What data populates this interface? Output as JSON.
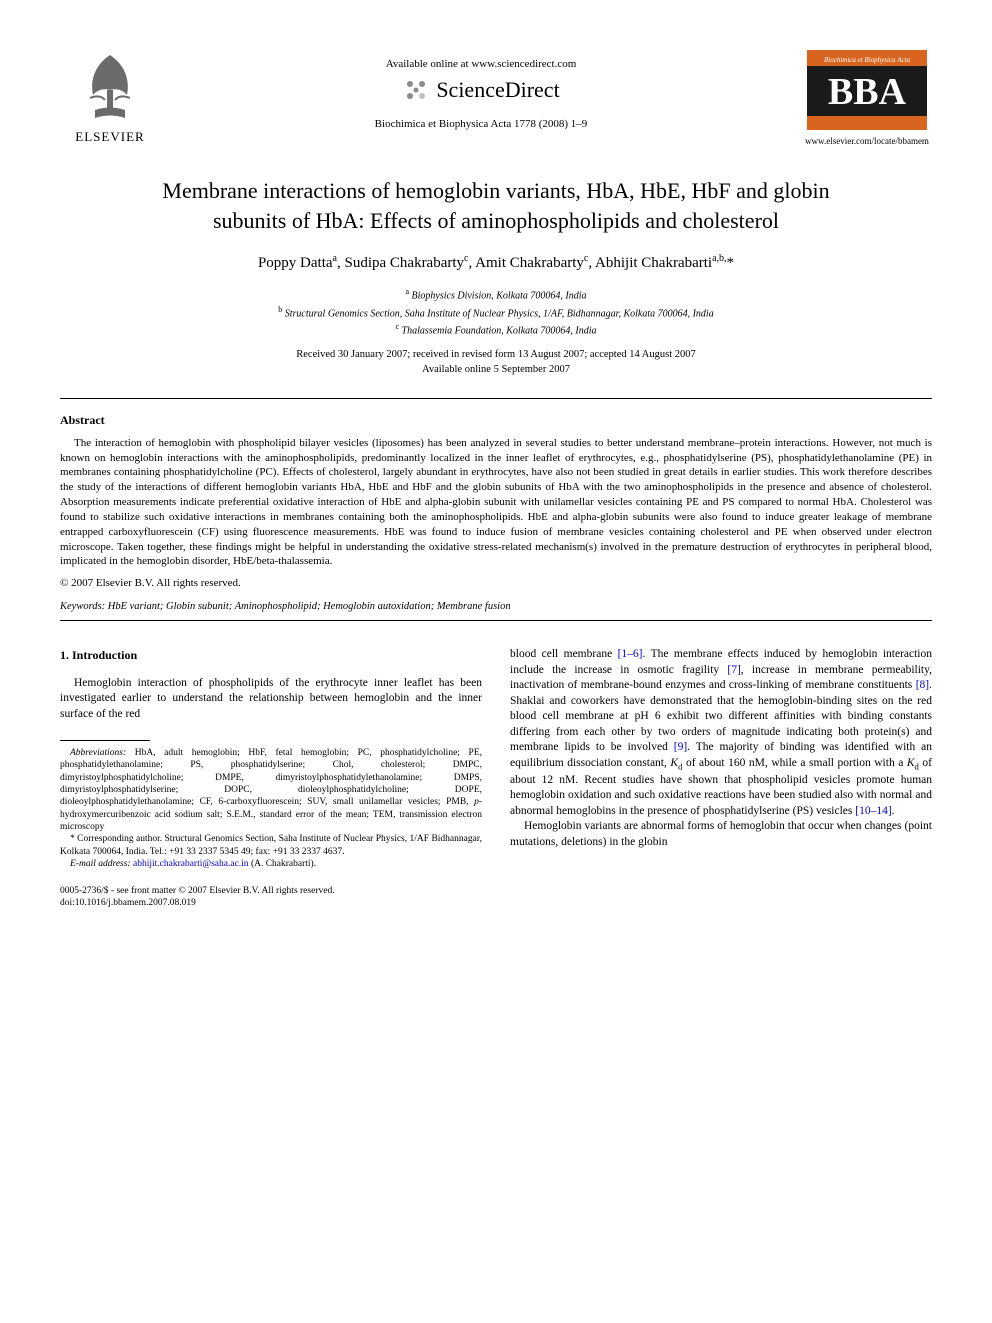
{
  "header": {
    "elsevier_label": "ELSEVIER",
    "available_online": "Available online at www.sciencedirect.com",
    "scidirect": "ScienceDirect",
    "journal_ref": "Biochimica et Biophysica Acta 1778 (2008) 1–9",
    "bba_top": "Biochimica et Biophysica Acta",
    "bba_big": "BBA",
    "bba_url": "www.elsevier.com/locate/bbamem"
  },
  "title_line1": "Membrane interactions of hemoglobin variants, HbA, HbE, HbF and globin",
  "title_line2": "subunits of HbA: Effects of aminophospholipids and cholesterol",
  "authors_html": "Poppy Datta<sup>a</sup>, Sudipa Chakrabarty<sup>c</sup>, Amit Chakrabarty<sup>c</sup>, Abhijit Chakrabarti<sup>a,b,</sup>*",
  "affiliations": {
    "a": "Biophysics Division, Kolkata 700064, India",
    "b": "Structural Genomics Section, Saha Institute of Nuclear Physics, 1/AF, Bidhannagar, Kolkata 700064, India",
    "c": "Thalassemia Foundation, Kolkata 700064, India"
  },
  "dates_line1": "Received 30 January 2007; received in revised form 13 August 2007; accepted 14 August 2007",
  "dates_line2": "Available online 5 September 2007",
  "abstract": {
    "heading": "Abstract",
    "body": "The interaction of hemoglobin with phospholipid bilayer vesicles (liposomes) has been analyzed in several studies to better understand membrane–protein interactions. However, not much is known on hemoglobin interactions with the aminophospholipids, predominantly localized in the inner leaflet of erythrocytes, e.g., phosphatidylserine (PS), phosphatidylethanolamine (PE) in membranes containing phosphatidylcholine (PC). Effects of cholesterol, largely abundant in erythrocytes, have also not been studied in great details in earlier studies. This work therefore describes the study of the interactions of different hemoglobin variants HbA, HbE and HbF and the globin subunits of HbA with the two aminophospholipids in the presence and absence of cholesterol. Absorption measurements indicate preferential oxidative interaction of HbE and alpha-globin subunit with unilamellar vesicles containing PE and PS compared to normal HbA. Cholesterol was found to stabilize such oxidative interactions in membranes containing both the aminophospholipids. HbE and alpha-globin subunits were also found to induce greater leakage of membrane entrapped carboxyfluorescein (CF) using fluorescence measurements. HbE was found to induce fusion of membrane vesicles containing cholesterol and PE when observed under electron microscope. Taken together, these findings might be helpful in understanding the oxidative stress-related mechanism(s) involved in the premature destruction of erythrocytes in peripheral blood, implicated in the hemoglobin disorder, HbE/beta-thalassemia.",
    "copyright": "© 2007 Elsevier B.V. All rights reserved."
  },
  "keywords_label": "Keywords:",
  "keywords": "HbE variant; Globin subunit; Aminophospholipid; Hemoglobin autoxidation; Membrane fusion",
  "intro": {
    "heading": "1. Introduction",
    "col1_p1": "Hemoglobin interaction of phospholipids of the erythrocyte inner leaflet has been investigated earlier to understand the relationship between hemoglobin and the inner surface of the red",
    "col2_p1_pre": "blood cell membrane ",
    "col2_p1_ref1": "[1–6]",
    "col2_p1_mid1": ". The membrane effects induced by hemoglobin interaction include the increase in osmotic fragility ",
    "col2_p1_ref2": "[7]",
    "col2_p1_mid2": ", increase in membrane permeability, inactivation of membrane-bound enzymes and cross-linking of membrane constituents ",
    "col2_p1_ref3": "[8]",
    "col2_p1_mid3": ". Shaklai and coworkers have demonstrated that the hemoglobin-binding sites on the red blood cell membrane at pH 6 exhibit two different affinities with binding constants differing from each other by two orders of magnitude indicating both protein(s) and membrane lipids to be involved ",
    "col2_p1_ref4": "[9]",
    "col2_p1_mid4": ". The majority of binding was identified with an equilibrium dissociation constant, ",
    "col2_p1_kd": "K",
    "col2_p1_kdsub": "d",
    "col2_p1_mid5": " of about 160 nM, while a small portion with a ",
    "col2_p1_mid6": " of about 12 nM. Recent studies have shown that phospholipid vesicles promote human hemoglobin oxidation and such oxidative reactions have been studied also with normal and abnormal hemoglobins in the presence of phosphatidylserine (PS) vesicles ",
    "col2_p1_ref5": "[10–14]",
    "col2_p1_end": ".",
    "col2_p2": "Hemoglobin variants are abnormal forms of hemoglobin that occur when changes (point mutations, deletions) in the globin"
  },
  "footnotes": {
    "abbrev_label": "Abbreviations:",
    "abbrev_body": " HbA, adult hemoglobin; HbF, fetal hemoglobin; PC, phosphatidylcholine; PE, phosphatidylethanolamine; PS, phosphatidylserine; Chol, cholesterol; DMPC, dimyristoylphosphatidylcholine; DMPE, dimyristoylphosphatidylethanolamine; DMPS, dimyristoylphosphatidylserine; DOPC, dioleoylphosphatidylcholine; DOPE, dioleoylphosphatidylethanolamine; CF, 6-carboxyfluorescein; SUV, small unilamellar vesicles; PMB, p-hydroxymercuribenzoic acid sodium salt; S.E.M., standard error of the mean; TEM, transmission electron microscopy",
    "corr": "* Corresponding author. Structural Genomics Section, Saha Institute of Nuclear Physics, 1/AF Bidhannagar, Kolkata 700064, India. Tel.: +91 33 2337 5345 49; fax: +91 33 2337 4637.",
    "email_label": "E-mail address:",
    "email": "abhijit.chakrabarti@saha.ac.in",
    "email_tail": " (A. Chakrabarti)."
  },
  "doi": {
    "line1": "0005-2736/$ - see front matter © 2007 Elsevier B.V. All rights reserved.",
    "line2": "doi:10.1016/j.bbamem.2007.08.019"
  },
  "colors": {
    "ref_link": "#0000d0",
    "bba_orange": "#d9641f",
    "bba_dark": "#1a1a1a",
    "elsevier_orange": "#e8893a",
    "sd_grey": "#8a8a8a"
  }
}
